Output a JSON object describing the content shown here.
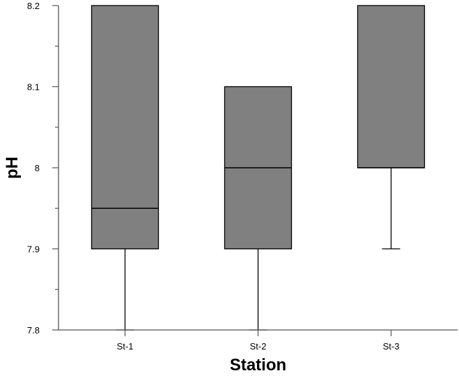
{
  "chart_data": {
    "type": "boxplot",
    "xlabel": "Station",
    "ylabel": "pH",
    "ylim": [
      7.8,
      8.2
    ],
    "yticks": [
      7.8,
      7.9,
      8.0,
      8.1,
      8.2
    ],
    "ytick_labels": [
      "7.8",
      "7.9",
      "8",
      "8.1",
      "8.2"
    ],
    "grid": false,
    "box_color": "#808080",
    "line_color": "#000000",
    "categories": [
      "St-1",
      "St-2",
      "St-3"
    ],
    "boxes": [
      {
        "label": "St-1",
        "whisker_low": 7.8,
        "q1": 7.9,
        "median": 7.95,
        "q3": 8.2,
        "whisker_high": 8.2
      },
      {
        "label": "St-2",
        "whisker_low": 7.8,
        "q1": 7.9,
        "median": 8.0,
        "q3": 8.1,
        "whisker_high": 8.1
      },
      {
        "label": "St-3",
        "whisker_low": 7.9,
        "q1": 8.0,
        "median": 8.0,
        "q3": 8.2,
        "whisker_high": 8.2
      }
    ]
  }
}
